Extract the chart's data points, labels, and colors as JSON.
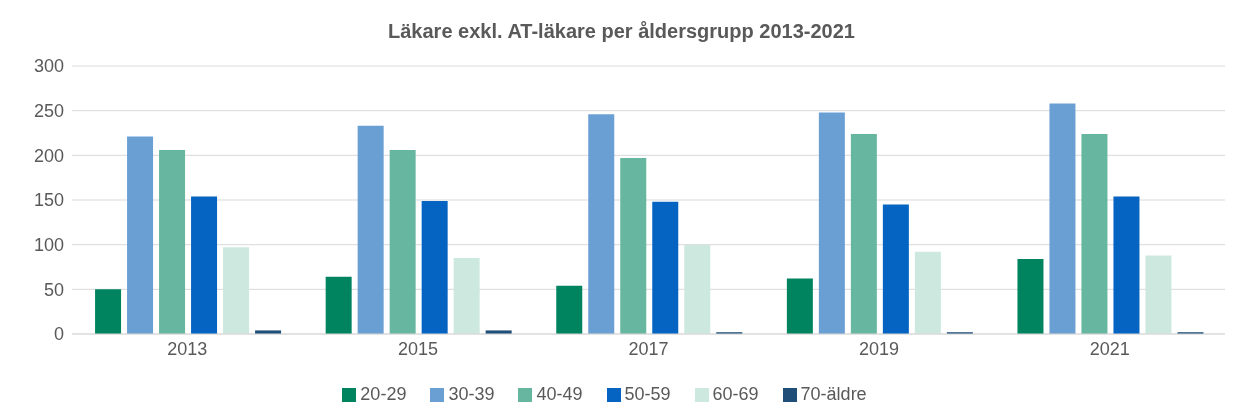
{
  "chart_data": {
    "type": "bar",
    "title": "Läkare exkl. AT-läkare per åldersgrupp 2013-2021",
    "categories": [
      "2013",
      "2015",
      "2017",
      "2019",
      "2021"
    ],
    "series": [
      {
        "name": "20-29",
        "color": "#00845f",
        "values": [
          50,
          64,
          54,
          62,
          84
        ]
      },
      {
        "name": "30-39",
        "color": "#6a9fd4",
        "values": [
          221,
          233,
          246,
          248,
          258
        ]
      },
      {
        "name": "40-49",
        "color": "#67b6a0",
        "values": [
          206,
          206,
          197,
          224,
          224
        ]
      },
      {
        "name": "50-59",
        "color": "#0563c1",
        "values": [
          154,
          149,
          148,
          145,
          154
        ]
      },
      {
        "name": "60-69",
        "color": "#cde8df",
        "values": [
          97,
          85,
          100,
          92,
          88
        ]
      },
      {
        "name": "70-äldre",
        "color": "#1f4e79",
        "values": [
          4,
          4,
          2,
          2,
          2
        ]
      }
    ],
    "ylim": [
      0,
      300
    ],
    "yticks": [
      0,
      50,
      100,
      150,
      200,
      250,
      300
    ],
    "grid": "y",
    "legend": "bottom"
  }
}
